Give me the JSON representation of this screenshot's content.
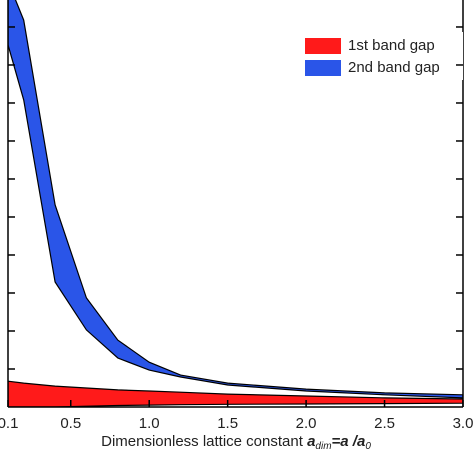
{
  "chart_data": {
    "type": "band",
    "xlabel": "Dimensionless lattice constant",
    "xlabel_math": [
      "a",
      "dim",
      "=a /a",
      "0"
    ],
    "x": [
      0.1,
      0.2,
      0.4,
      0.6,
      0.8,
      1.0,
      1.2,
      1.5,
      2.0,
      2.5,
      3.0
    ],
    "series": [
      {
        "name": "1st band gap",
        "color": "#ff1a1a",
        "low": [
          0,
          0,
          0,
          0.02,
          0.04,
          0.05,
          0.06,
          0.07,
          0.08,
          0.09,
          0.1
        ],
        "high": [
          0.68,
          0.63,
          0.55,
          0.5,
          0.45,
          0.42,
          0.39,
          0.34,
          0.29,
          0.24,
          0.21
        ]
      },
      {
        "name": "2nd band gap",
        "color": "#2a55e8",
        "low": [
          9.53,
          8.08,
          3.29,
          2.03,
          1.29,
          0.97,
          0.79,
          0.58,
          0.42,
          0.32,
          0.24
        ],
        "high": [
          11.2,
          10.18,
          5.32,
          2.87,
          1.76,
          1.18,
          0.84,
          0.63,
          0.47,
          0.37,
          0.32
        ]
      }
    ],
    "xlim": [
      0.1,
      3.0
    ],
    "xticks": [
      {
        "value": 0.1,
        "label": "0.1"
      },
      0.5,
      {
        "value": 1.0,
        "label": "1.0"
      },
      1.5,
      {
        "value": 2.0,
        "label": "2.0"
      },
      2.5,
      {
        "value": 3.0,
        "label": "3.0"
      }
    ],
    "ylim": [
      0,
      10.71
    ],
    "yticks": [
      1,
      2,
      3,
      4,
      5,
      6,
      7,
      8,
      9,
      10
    ],
    "legend": "upper-right"
  }
}
